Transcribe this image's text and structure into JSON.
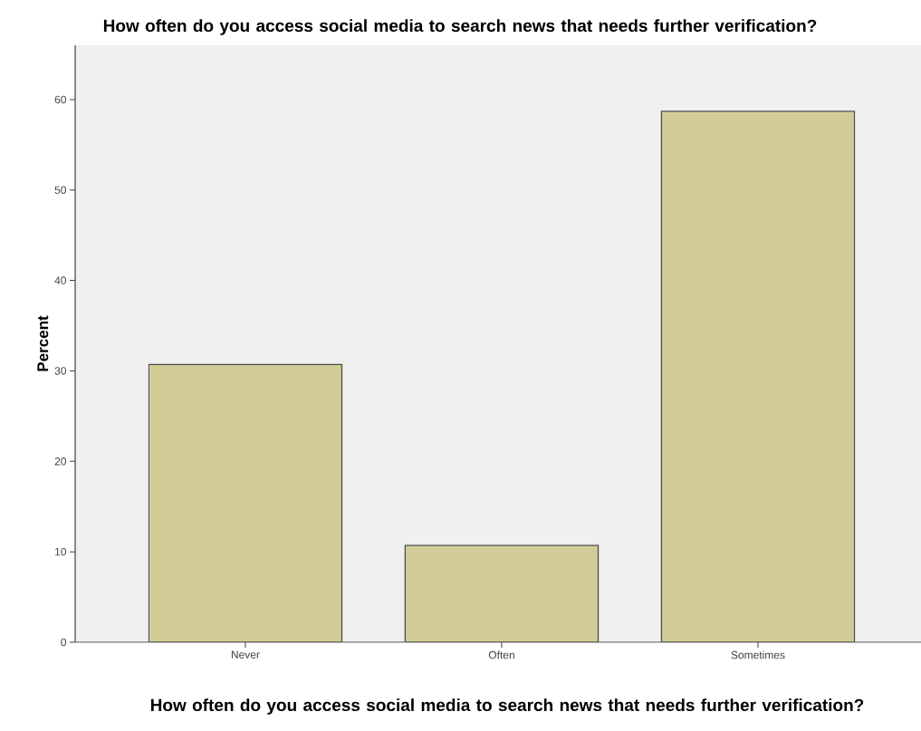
{
  "chart_data": {
    "type": "bar",
    "title": "How often do you access social media to search news that needs further verification?",
    "xlabel": "How often do you access social media to search news that needs further verification?",
    "ylabel": "Percent",
    "categories": [
      "Never",
      "Often",
      "Sometimes"
    ],
    "values": [
      30.7,
      10.7,
      58.7
    ],
    "color": "#d2cd96",
    "ylim": [
      0,
      66
    ],
    "yticks": [
      0,
      10,
      20,
      30,
      40,
      50,
      60
    ],
    "grid": false
  }
}
